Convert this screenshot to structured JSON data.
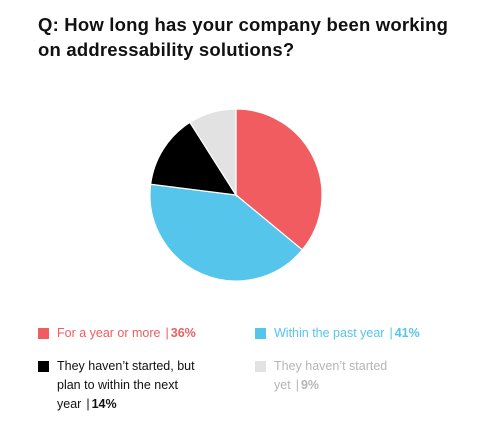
{
  "title": "Q: How long has your company been working on addressability solutions?",
  "colors": {
    "red": "#F05C5F",
    "blue": "#55C5EB",
    "black": "#000000",
    "gray": "#E2E2E2",
    "white_stroke": "#FFFFFF"
  },
  "chart_data": {
    "type": "pie",
    "title": "Q: How long has your company been working on addressability solutions?",
    "slices": [
      {
        "label": "For a year or more",
        "value": 36,
        "value_label": "36%",
        "color": "#F05C5F"
      },
      {
        "label": "Within the past year",
        "value": 41,
        "value_label": "41%",
        "color": "#55C5EB"
      },
      {
        "label": "They haven’t started, but plan to within the next year",
        "value": 14,
        "value_label": "14%",
        "color": "#000000"
      },
      {
        "label": "They haven’t started",
        "value": 9,
        "value_label": "9%",
        "color": "#E2E2E2"
      }
    ]
  },
  "legend": [
    {
      "label": "For a year or more",
      "value": "36%",
      "color": "#F05C5F",
      "text_color": "#F05C5F"
    },
    {
      "label": "Within the past year",
      "value": "41%",
      "color": "#55C5EB",
      "text_color": "#55C5EB"
    },
    {
      "label": "They haven’t started, but plan to within the next year",
      "value": "14%",
      "color": "#000000",
      "text_color": "#111111"
    },
    {
      "label": "They haven’t started yet",
      "value": "9%",
      "color": "#E2E2E2",
      "text_color": "#B5B5B5"
    }
  ]
}
